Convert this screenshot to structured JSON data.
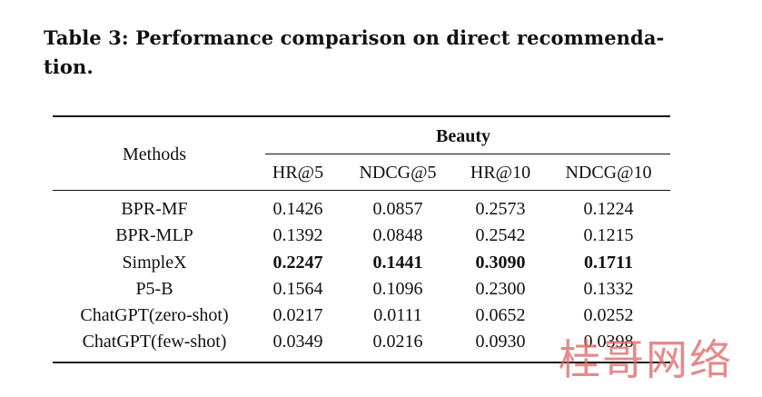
{
  "caption": "Table 3: Performance comparison on direct recommenda-tion.",
  "table": {
    "methods_header": "Methods",
    "group_header": "Beauty",
    "metric_headers": [
      "HR@5",
      "NDCG@5",
      "HR@10",
      "NDCG@10"
    ],
    "rows": [
      {
        "method": "BPR-MF",
        "values": [
          "0.1426",
          "0.0857",
          "0.2573",
          "0.1224"
        ],
        "bold": false
      },
      {
        "method": "BPR-MLP",
        "values": [
          "0.1392",
          "0.0848",
          "0.2542",
          "0.1215"
        ],
        "bold": false
      },
      {
        "method": "SimpleX",
        "values": [
          "0.2247",
          "0.1441",
          "0.3090",
          "0.1711"
        ],
        "bold": true
      },
      {
        "method": "P5-B",
        "values": [
          "0.1564",
          "0.1096",
          "0.2300",
          "0.1332"
        ],
        "bold": false
      },
      {
        "method": "ChatGPT(zero-shot)",
        "values": [
          "0.0217",
          "0.0111",
          "0.0652",
          "0.0252"
        ],
        "bold": false
      },
      {
        "method": "ChatGPT(few-shot)",
        "values": [
          "0.0349",
          "0.0216",
          "0.0930",
          "0.0398"
        ],
        "bold": false
      }
    ]
  },
  "watermark": "桂哥网络"
}
